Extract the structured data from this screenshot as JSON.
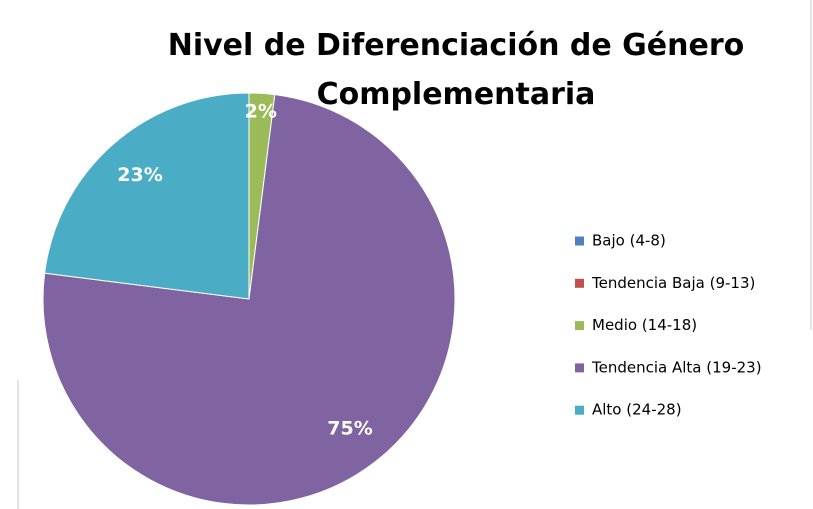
{
  "chart_data": {
    "type": "pie",
    "title": [
      "Nivel de Diferenciación de Género",
      "Complementaria"
    ],
    "categories": [
      "Bajo (4-8)",
      "Tendencia Baja (9-13)",
      "Medio (14-18)",
      "Tendencia Alta (19-23)",
      "Alto (24-28)"
    ],
    "values": [
      0,
      0,
      2,
      75,
      23
    ],
    "value_labels": [
      null,
      null,
      "2%",
      "75%",
      "23%"
    ],
    "colors": [
      "#4f81bd",
      "#c0504d",
      "#9bbb59",
      "#8064a2",
      "#4bacc6"
    ],
    "legend": "right"
  }
}
